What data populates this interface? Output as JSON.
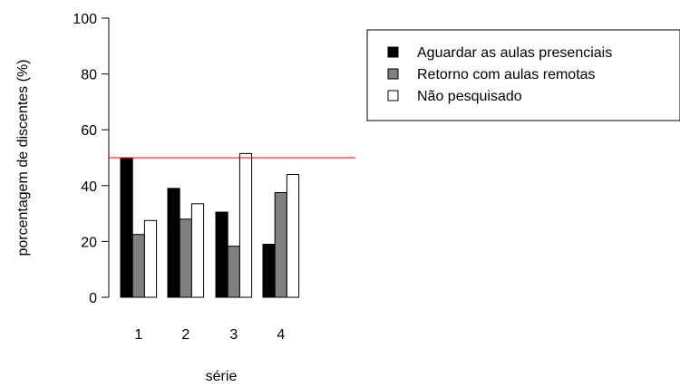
{
  "chart_data": {
    "type": "bar",
    "title": "",
    "xlabel": "série",
    "ylabel": "porcentagem de discentes (%)",
    "ylim": [
      0,
      100
    ],
    "yticks": [
      0,
      20,
      40,
      60,
      80,
      100
    ],
    "categories": [
      "1",
      "2",
      "3",
      "4"
    ],
    "series": [
      {
        "name": "Aguardar as aulas presenciais",
        "color": "#000000",
        "values": [
          50,
          39,
          30.5,
          19
        ]
      },
      {
        "name": "Retorno com aulas remotas",
        "color": "#808080",
        "values": [
          22.5,
          28,
          18.3,
          37.5
        ]
      },
      {
        "name": "Não pesquisado",
        "color": "#ffffff",
        "values": [
          27.5,
          33.5,
          51.5,
          44
        ]
      }
    ],
    "reference_line": {
      "value": 50,
      "color": "#ff0000"
    },
    "legend_position": "top-right",
    "grid": false
  }
}
